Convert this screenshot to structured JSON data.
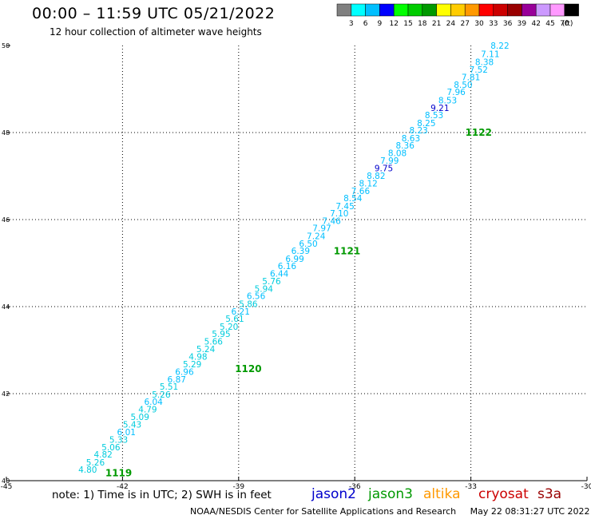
{
  "header": {
    "title": "00:00 – 11:59 UTC 05/21/2022",
    "subtitle": "12 hour collection of altimeter wave heights"
  },
  "colorbar": {
    "colors": [
      "#808080",
      "#00ffff",
      "#00bfff",
      "#0000ff",
      "#00ff00",
      "#00cc00",
      "#009900",
      "#ffff00",
      "#ffcc00",
      "#ff9900",
      "#ff0000",
      "#cc0000",
      "#990000",
      "#990099",
      "#cc99ff",
      "#ff99ff",
      "#000000"
    ],
    "labels": [
      "3",
      "6",
      "9",
      "12",
      "15",
      "18",
      "21",
      "24",
      "27",
      "30",
      "33",
      "36",
      "39",
      "42",
      "45",
      "70"
    ],
    "unit": "(ft)"
  },
  "footer": {
    "note": "note: 1) Time is in UTC; 2) SWH is in feet",
    "satellites": [
      {
        "name": "jason2",
        "color": "#0000cc"
      },
      {
        "name": "jason3",
        "color": "#009900"
      },
      {
        "name": "altika",
        "color": "#ff9900"
      },
      {
        "name": "cryosat",
        "color": "#cc0000"
      },
      {
        "name": "s3a",
        "color": "#990000"
      }
    ],
    "credit": "NOAA/NESDIS Center for Satellite Applications and Research",
    "timestamp": "May 22 08:31:27 UTC 2022"
  },
  "chart_data": {
    "type": "scatter",
    "title": "00:00 – 11:59 UTC 05/21/2022",
    "xlim": [
      -45,
      -30
    ],
    "ylim": [
      40,
      50
    ],
    "xticks": [
      "-45",
      "-42",
      "-39",
      "-36",
      "-33",
      "-30"
    ],
    "yticks": [
      "40",
      "42",
      "44",
      "46",
      "48",
      "50"
    ],
    "grid": true,
    "points": [
      {
        "x": -32.25,
        "y": 49.93,
        "label": "8.22",
        "color": "#00bfff"
      },
      {
        "x": -32.5,
        "y": 49.73,
        "label": "7.11",
        "color": "#00bfff"
      },
      {
        "x": -32.65,
        "y": 49.55,
        "label": "8.38",
        "color": "#00bfff"
      },
      {
        "x": -32.8,
        "y": 49.38,
        "label": "7.52",
        "color": "#00bfff"
      },
      {
        "x": -33.0,
        "y": 49.2,
        "label": "7.81",
        "color": "#00bfff"
      },
      {
        "x": -33.2,
        "y": 49.03,
        "label": "8.50",
        "color": "#00bfff"
      },
      {
        "x": -33.38,
        "y": 48.86,
        "label": "7.96",
        "color": "#00bfff"
      },
      {
        "x": -33.6,
        "y": 48.67,
        "label": "8.53",
        "color": "#00bfff"
      },
      {
        "x": -33.8,
        "y": 48.5,
        "label": "9.21",
        "color": "#0000cc"
      },
      {
        "x": -33.95,
        "y": 48.33,
        "label": "8.53",
        "color": "#00bfff"
      },
      {
        "x": -34.15,
        "y": 48.15,
        "label": "8.25",
        "color": "#00bfff"
      },
      {
        "x": -34.35,
        "y": 47.98,
        "label": "8.23",
        "color": "#00bfff"
      },
      {
        "x": -34.55,
        "y": 47.8,
        "label": "8.63",
        "color": "#00bfff"
      },
      {
        "x": -34.7,
        "y": 47.63,
        "label": "8.36",
        "color": "#00bfff"
      },
      {
        "x": -34.9,
        "y": 47.46,
        "label": "8.08",
        "color": "#00bfff"
      },
      {
        "x": -35.1,
        "y": 47.28,
        "label": "7.99",
        "color": "#00bfff"
      },
      {
        "x": -35.25,
        "y": 47.11,
        "label": "9.75",
        "color": "#0000cc"
      },
      {
        "x": -35.45,
        "y": 46.94,
        "label": "8.82",
        "color": "#00bfff"
      },
      {
        "x": -35.65,
        "y": 46.76,
        "label": "8.12",
        "color": "#00bfff"
      },
      {
        "x": -35.85,
        "y": 46.59,
        "label": "7.66",
        "color": "#00bfff"
      },
      {
        "x": -36.05,
        "y": 46.42,
        "label": "8.54",
        "color": "#00bfff"
      },
      {
        "x": -36.25,
        "y": 46.24,
        "label": "7.45",
        "color": "#00bfff"
      },
      {
        "x": -36.4,
        "y": 46.07,
        "label": "7.10",
        "color": "#00bfff"
      },
      {
        "x": -36.6,
        "y": 45.9,
        "label": "7.46",
        "color": "#00bfff"
      },
      {
        "x": -36.85,
        "y": 45.73,
        "label": "7.97",
        "color": "#00bfff"
      },
      {
        "x": -37.0,
        "y": 45.55,
        "label": "7.24",
        "color": "#00bfff"
      },
      {
        "x": -37.2,
        "y": 45.38,
        "label": "6.50",
        "color": "#00bfff"
      },
      {
        "x": -37.4,
        "y": 45.21,
        "label": "6.39",
        "color": "#00bfff"
      },
      {
        "x": -37.55,
        "y": 45.03,
        "label": "6.99",
        "color": "#00bfff"
      },
      {
        "x": -37.75,
        "y": 44.86,
        "label": "6.16",
        "color": "#00bfff"
      },
      {
        "x": -37.95,
        "y": 44.69,
        "label": "6.44",
        "color": "#00bfff"
      },
      {
        "x": -38.15,
        "y": 44.51,
        "label": "5.76",
        "color": "#00ccdd"
      },
      {
        "x": -38.35,
        "y": 44.34,
        "label": "5.94",
        "color": "#00ccdd"
      },
      {
        "x": -38.55,
        "y": 44.17,
        "label": "6.56",
        "color": "#00bfff"
      },
      {
        "x": -38.75,
        "y": 43.99,
        "label": "5.86",
        "color": "#00ccdd"
      },
      {
        "x": -38.95,
        "y": 43.82,
        "label": "6.21",
        "color": "#00bfff"
      },
      {
        "x": -39.1,
        "y": 43.65,
        "label": "5.61",
        "color": "#00ccdd"
      },
      {
        "x": -39.25,
        "y": 43.47,
        "label": "5.20",
        "color": "#00ccdd"
      },
      {
        "x": -39.45,
        "y": 43.3,
        "label": "5.95",
        "color": "#00ccdd"
      },
      {
        "x": -39.65,
        "y": 43.13,
        "label": "5.66",
        "color": "#00ccdd"
      },
      {
        "x": -39.85,
        "y": 42.95,
        "label": "5.24",
        "color": "#00ccdd"
      },
      {
        "x": -40.05,
        "y": 42.78,
        "label": "4.98",
        "color": "#00ccdd"
      },
      {
        "x": -40.2,
        "y": 42.61,
        "label": "5.29",
        "color": "#00ccdd"
      },
      {
        "x": -40.4,
        "y": 42.43,
        "label": "6.96",
        "color": "#00bfff"
      },
      {
        "x": -40.6,
        "y": 42.26,
        "label": "6.87",
        "color": "#00bfff"
      },
      {
        "x": -40.8,
        "y": 42.09,
        "label": "5.51",
        "color": "#00ccdd"
      },
      {
        "x": -41.0,
        "y": 41.91,
        "label": "5.26",
        "color": "#00ccdd"
      },
      {
        "x": -41.2,
        "y": 41.74,
        "label": "6.04",
        "color": "#00bfff"
      },
      {
        "x": -41.35,
        "y": 41.57,
        "label": "4.79",
        "color": "#00ccdd"
      },
      {
        "x": -41.55,
        "y": 41.39,
        "label": "5.09",
        "color": "#00ccdd"
      },
      {
        "x": -41.75,
        "y": 41.22,
        "label": "5.43",
        "color": "#00ccdd"
      },
      {
        "x": -41.9,
        "y": 41.05,
        "label": "6.01",
        "color": "#00bfff"
      },
      {
        "x": -42.1,
        "y": 40.87,
        "label": "5.33",
        "color": "#00ccdd"
      },
      {
        "x": -42.3,
        "y": 40.7,
        "label": "5.06",
        "color": "#00ccdd"
      },
      {
        "x": -42.5,
        "y": 40.53,
        "label": "4.82",
        "color": "#00ccdd"
      },
      {
        "x": -42.7,
        "y": 40.35,
        "label": "5.26",
        "color": "#00ccdd"
      },
      {
        "x": -42.9,
        "y": 40.18,
        "label": "4.80",
        "color": "#00ccdd"
      }
    ],
    "annotations": [
      {
        "x": -32.8,
        "y": 47.93,
        "text": "1122",
        "color": "#009900"
      },
      {
        "x": -36.2,
        "y": 45.2,
        "text": "1121",
        "color": "#009900"
      },
      {
        "x": -38.75,
        "y": 42.5,
        "text": "1120",
        "color": "#009900"
      },
      {
        "x": -42.1,
        "y": 40.1,
        "text": "1119",
        "color": "#009900"
      }
    ]
  }
}
